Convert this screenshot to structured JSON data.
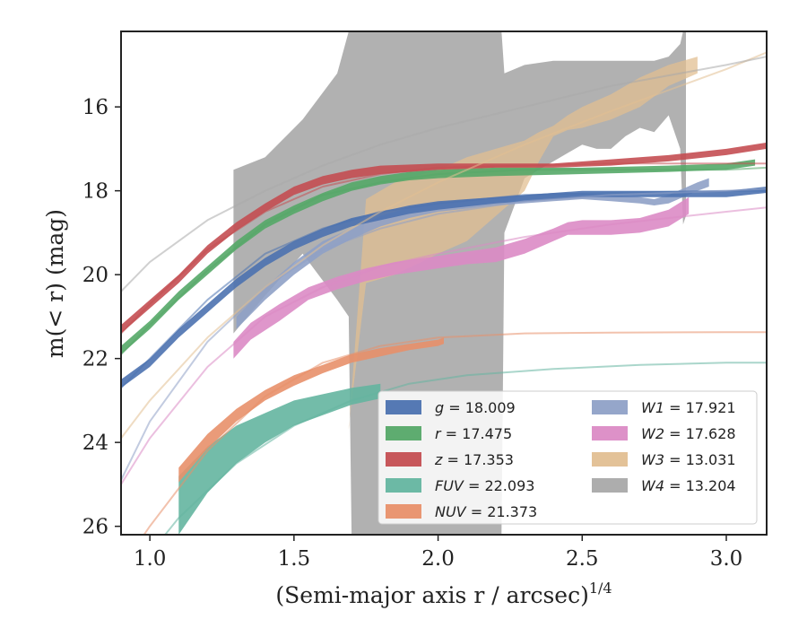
{
  "chart_data": {
    "type": "line",
    "xlabel": "(Semi-major axis r / arcsec)",
    "xlabel_sup": "1/4",
    "ylabel": "m(< r) (mag)",
    "xlim": [
      0.9,
      3.14
    ],
    "ylim": [
      26.2,
      14.2
    ],
    "y_inverted": true,
    "x_ticks": [
      1.0,
      1.5,
      2.0,
      2.5,
      3.0
    ],
    "x_tick_labels": [
      "1.0",
      "1.5",
      "2.0",
      "2.5",
      "3.0"
    ],
    "y_ticks": [
      16,
      18,
      20,
      22,
      24,
      26
    ],
    "y_tick_labels": [
      "16",
      "18",
      "20",
      "22",
      "24",
      "26"
    ],
    "grid": false,
    "legend": {
      "placement": "lower-right",
      "columns": 2
    },
    "series": [
      {
        "name": "g = 18.009",
        "band": "g",
        "mag": "18.009",
        "color": "#4c72b0",
        "band_x": [
          0.9,
          1.0,
          1.1,
          1.2,
          1.3,
          1.4,
          1.5,
          1.6,
          1.7,
          1.8,
          1.9,
          2.0,
          2.2,
          2.4,
          2.5,
          2.6,
          2.8,
          3.0,
          3.14
        ],
        "band_lo": [
          22.5,
          22.0,
          21.3,
          20.7,
          20.1,
          19.6,
          19.2,
          18.9,
          18.65,
          18.5,
          18.35,
          18.25,
          18.15,
          18.05,
          18.0,
          18.0,
          18.0,
          18.0,
          17.9
        ],
        "band_hi": [
          22.7,
          22.2,
          21.5,
          20.9,
          20.3,
          19.8,
          19.4,
          19.1,
          18.85,
          18.7,
          18.55,
          18.45,
          18.3,
          18.2,
          18.15,
          18.15,
          18.15,
          18.15,
          18.05
        ],
        "model_x": [
          0.9,
          1.0,
          1.2,
          1.4,
          1.6,
          1.8,
          2.0,
          2.3,
          2.6,
          3.0,
          3.14
        ],
        "model_y": [
          22.7,
          22.0,
          20.6,
          19.5,
          18.9,
          18.5,
          18.3,
          18.1,
          18.05,
          18.0,
          18.0
        ]
      },
      {
        "name": "r = 17.475",
        "band": "r",
        "mag": "17.475",
        "color": "#55a868",
        "band_x": [
          0.9,
          1.0,
          1.1,
          1.2,
          1.3,
          1.4,
          1.5,
          1.6,
          1.7,
          1.8,
          1.9,
          2.0,
          2.2,
          2.5,
          2.8,
          3.0,
          3.1
        ],
        "band_lo": [
          21.7,
          21.1,
          20.4,
          19.8,
          19.2,
          18.7,
          18.35,
          18.05,
          17.8,
          17.65,
          17.55,
          17.5,
          17.45,
          17.45,
          17.4,
          17.35,
          17.25
        ],
        "band_hi": [
          21.9,
          21.3,
          20.6,
          20.0,
          19.4,
          18.9,
          18.55,
          18.25,
          18.0,
          17.85,
          17.75,
          17.7,
          17.65,
          17.6,
          17.55,
          17.5,
          17.4
        ],
        "model_x": [
          0.9,
          1.0,
          1.2,
          1.4,
          1.6,
          1.8,
          2.0,
          2.3,
          2.6,
          3.0,
          3.14
        ],
        "model_y": [
          21.9,
          21.2,
          19.9,
          18.8,
          18.1,
          17.8,
          17.6,
          17.5,
          17.5,
          17.5,
          17.45
        ]
      },
      {
        "name": "z = 17.353",
        "band": "z",
        "mag": "17.353",
        "color": "#c44e52",
        "band_x": [
          0.9,
          1.0,
          1.1,
          1.2,
          1.3,
          1.4,
          1.5,
          1.6,
          1.7,
          1.8,
          2.0,
          2.2,
          2.4,
          2.6,
          2.8,
          3.0,
          3.14
        ],
        "band_lo": [
          21.2,
          20.6,
          20.0,
          19.3,
          18.75,
          18.3,
          17.9,
          17.65,
          17.5,
          17.4,
          17.35,
          17.35,
          17.35,
          17.25,
          17.15,
          17.0,
          16.85
        ],
        "band_hi": [
          21.4,
          20.8,
          20.2,
          19.5,
          18.95,
          18.5,
          18.1,
          17.85,
          17.7,
          17.6,
          17.5,
          17.45,
          17.45,
          17.4,
          17.3,
          17.15,
          17.0
        ],
        "model_x": [
          0.9,
          1.0,
          1.2,
          1.4,
          1.6,
          1.8,
          2.0,
          2.3,
          2.6,
          3.0,
          3.14
        ],
        "model_y": [
          21.4,
          20.7,
          19.4,
          18.5,
          17.9,
          17.6,
          17.45,
          17.4,
          17.35,
          17.35,
          17.35
        ]
      },
      {
        "name": "FUV = 22.093",
        "band": "FUV",
        "mag": "22.093",
        "color": "#64b5a0",
        "band_x": [
          1.1,
          1.2,
          1.3,
          1.4,
          1.5,
          1.6,
          1.7,
          1.8
        ],
        "band_lo": [
          24.8,
          24.1,
          23.6,
          23.3,
          23.0,
          22.85,
          22.7,
          22.6
        ],
        "band_hi": [
          26.2,
          25.2,
          24.5,
          24.0,
          23.6,
          23.35,
          23.1,
          22.95
        ],
        "model_x": [
          0.9,
          1.1,
          1.3,
          1.5,
          1.7,
          1.9,
          2.1,
          2.4,
          2.7,
          3.0,
          3.14
        ],
        "model_y": [
          27.5,
          25.8,
          24.5,
          23.6,
          23.0,
          22.6,
          22.4,
          22.25,
          22.15,
          22.1,
          22.1
        ]
      },
      {
        "name": "NUV = 21.373",
        "band": "NUV",
        "mag": "21.373",
        "color": "#e8906a",
        "band_x": [
          1.1,
          1.2,
          1.3,
          1.4,
          1.5,
          1.6,
          1.7,
          1.8,
          1.9,
          2.0,
          2.02
        ],
        "band_lo": [
          24.6,
          23.8,
          23.2,
          22.75,
          22.4,
          22.15,
          21.9,
          21.75,
          21.65,
          21.55,
          21.5
        ],
        "band_hi": [
          24.95,
          24.15,
          23.5,
          23.0,
          22.65,
          22.35,
          22.1,
          21.95,
          21.8,
          21.7,
          21.65
        ],
        "model_x": [
          0.9,
          1.0,
          1.2,
          1.4,
          1.6,
          1.8,
          2.0,
          2.3,
          2.6,
          3.0,
          3.14
        ],
        "model_y": [
          27.0,
          26.0,
          24.2,
          22.9,
          22.1,
          21.7,
          21.5,
          21.4,
          21.38,
          21.37,
          21.37
        ]
      },
      {
        "name": "W1 = 17.921",
        "band": "W1",
        "mag": "17.921",
        "color": "#8fa1c7",
        "band_x": [
          1.3,
          1.4,
          1.5,
          1.6,
          1.7,
          1.8,
          1.9,
          2.0,
          2.2,
          2.4,
          2.5,
          2.6,
          2.7,
          2.75,
          2.8,
          2.85,
          2.9,
          2.94
        ],
        "band_lo": [
          21.0,
          20.3,
          19.7,
          19.2,
          18.9,
          18.6,
          18.4,
          18.3,
          18.15,
          18.05,
          18.05,
          18.1,
          18.15,
          18.2,
          18.1,
          17.95,
          17.8,
          17.7
        ],
        "band_hi": [
          21.3,
          20.6,
          20.0,
          19.5,
          19.15,
          18.85,
          18.65,
          18.5,
          18.35,
          18.25,
          18.2,
          18.25,
          18.3,
          18.35,
          18.3,
          18.15,
          18.0,
          17.9
        ],
        "model_x": [
          0.9,
          1.0,
          1.2,
          1.4,
          1.6,
          1.8,
          2.0,
          2.3,
          2.6,
          3.0,
          3.14
        ],
        "model_y": [
          24.9,
          23.5,
          21.6,
          20.3,
          19.4,
          18.9,
          18.55,
          18.25,
          18.1,
          18.0,
          17.95
        ]
      },
      {
        "name": "W2 = 17.628",
        "band": "W2",
        "mag": "17.628",
        "color": "#db8bc5",
        "band_x": [
          1.29,
          1.35,
          1.45,
          1.55,
          1.65,
          1.75,
          1.85,
          2.0,
          2.1,
          2.2,
          2.3,
          2.4,
          2.45,
          2.5,
          2.6,
          2.7,
          2.8,
          2.87
        ],
        "band_lo": [
          21.6,
          21.15,
          20.7,
          20.3,
          20.05,
          19.85,
          19.7,
          19.55,
          19.45,
          19.35,
          19.15,
          18.9,
          18.75,
          18.7,
          18.7,
          18.65,
          18.45,
          18.15
        ],
        "band_hi": [
          22.0,
          21.55,
          21.1,
          20.6,
          20.35,
          20.15,
          20.0,
          19.85,
          19.75,
          19.7,
          19.5,
          19.2,
          19.05,
          19.05,
          19.05,
          19.0,
          18.85,
          18.55
        ],
        "model_x": [
          0.9,
          1.0,
          1.2,
          1.4,
          1.6,
          1.8,
          2.0,
          2.3,
          2.6,
          3.0,
          3.14
        ],
        "model_y": [
          25.0,
          23.9,
          22.2,
          21.0,
          20.3,
          19.8,
          19.5,
          19.1,
          18.8,
          18.5,
          18.4
        ]
      },
      {
        "name": "W3 = 13.031",
        "band": "W3",
        "mag": "13.031",
        "color": "#e1bf92",
        "band_x": [
          1.69,
          1.75,
          1.85,
          2.0,
          2.1,
          2.2,
          2.3,
          2.35,
          2.4,
          2.45,
          2.5,
          2.6,
          2.7,
          2.8,
          2.9
        ],
        "band_lo": [
          23.6,
          20.2,
          20.0,
          19.5,
          19.2,
          18.6,
          18.0,
          17.3,
          16.7,
          16.55,
          16.5,
          16.3,
          16.0,
          15.5,
          15.2
        ],
        "band_hi": [
          23.7,
          18.2,
          17.8,
          17.5,
          17.2,
          17.0,
          16.8,
          16.6,
          16.45,
          16.2,
          16.0,
          15.7,
          15.3,
          15.0,
          14.8
        ],
        "model_x": [
          0.9,
          1.0,
          1.2,
          1.4,
          1.6,
          1.8,
          2.0,
          2.3,
          2.6,
          3.0,
          3.14
        ],
        "model_y": [
          23.9,
          23.0,
          21.5,
          20.3,
          19.3,
          18.5,
          17.8,
          16.9,
          16.1,
          15.1,
          14.7
        ]
      },
      {
        "name": "W4 = 13.204",
        "band": "W4",
        "mag": "13.204",
        "color": "#a9a9a9",
        "band_x": [
          1.29,
          1.4,
          1.53,
          1.65,
          1.69,
          1.7,
          1.72,
          1.8,
          1.9,
          2.0,
          2.1,
          2.2,
          2.22,
          2.23,
          2.3,
          2.4,
          2.5,
          2.55,
          2.6,
          2.65,
          2.7,
          2.75,
          2.8,
          2.84,
          2.85,
          2.86
        ],
        "band_lo": [
          21.4,
          20.5,
          19.5,
          20.6,
          21.0,
          26.2,
          26.2,
          26.2,
          26.2,
          26.2,
          26.2,
          26.2,
          26.2,
          19.0,
          17.7,
          17.3,
          16.9,
          17.0,
          17.0,
          16.7,
          16.5,
          16.6,
          16.2,
          17.0,
          18.8,
          18.6
        ],
        "band_hi": [
          17.5,
          17.2,
          16.3,
          15.2,
          14.2,
          14.2,
          14.2,
          14.2,
          14.2,
          14.2,
          14.2,
          14.2,
          14.2,
          15.2,
          15.0,
          14.9,
          14.9,
          14.9,
          14.9,
          14.9,
          14.9,
          14.9,
          14.8,
          14.5,
          14.2,
          14.2
        ],
        "model_x": [
          0.9,
          1.0,
          1.2,
          1.4,
          1.6,
          1.8,
          2.0,
          2.3,
          2.6,
          3.0,
          3.14
        ],
        "model_y": [
          20.4,
          19.7,
          18.7,
          18.0,
          17.4,
          16.9,
          16.5,
          16.0,
          15.5,
          15.0,
          14.8
        ]
      }
    ]
  }
}
